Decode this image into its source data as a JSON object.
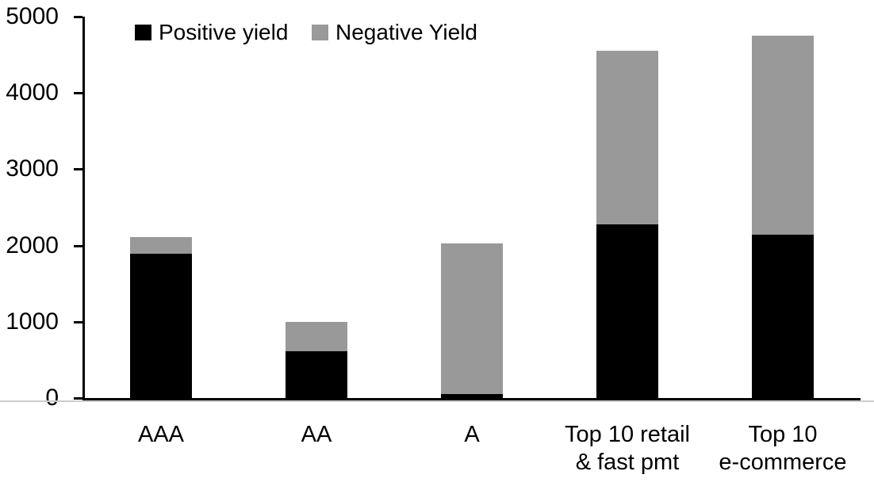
{
  "chart_data": {
    "type": "bar",
    "stacked": true,
    "title": "",
    "xlabel": "",
    "ylabel": "",
    "categories": [
      "AAA",
      "AA",
      "A",
      "Top 10 retail\n& fast pmt",
      "Top 10\ne-commerce"
    ],
    "series": [
      {
        "name": "Positive yield",
        "color": "#000000",
        "values": [
          1890,
          610,
          50,
          2280,
          2140
        ]
      },
      {
        "name": "Negative Yield",
        "color": "#999999",
        "values": [
          220,
          390,
          1980,
          2270,
          2610
        ]
      }
    ],
    "ylim": [
      0,
      5000
    ],
    "y_ticks": [
      0,
      1000,
      2000,
      3000,
      4000,
      5000
    ],
    "grid": false,
    "legend_position": "top",
    "axis_color": "#000000",
    "background_color": "#ffffff"
  }
}
